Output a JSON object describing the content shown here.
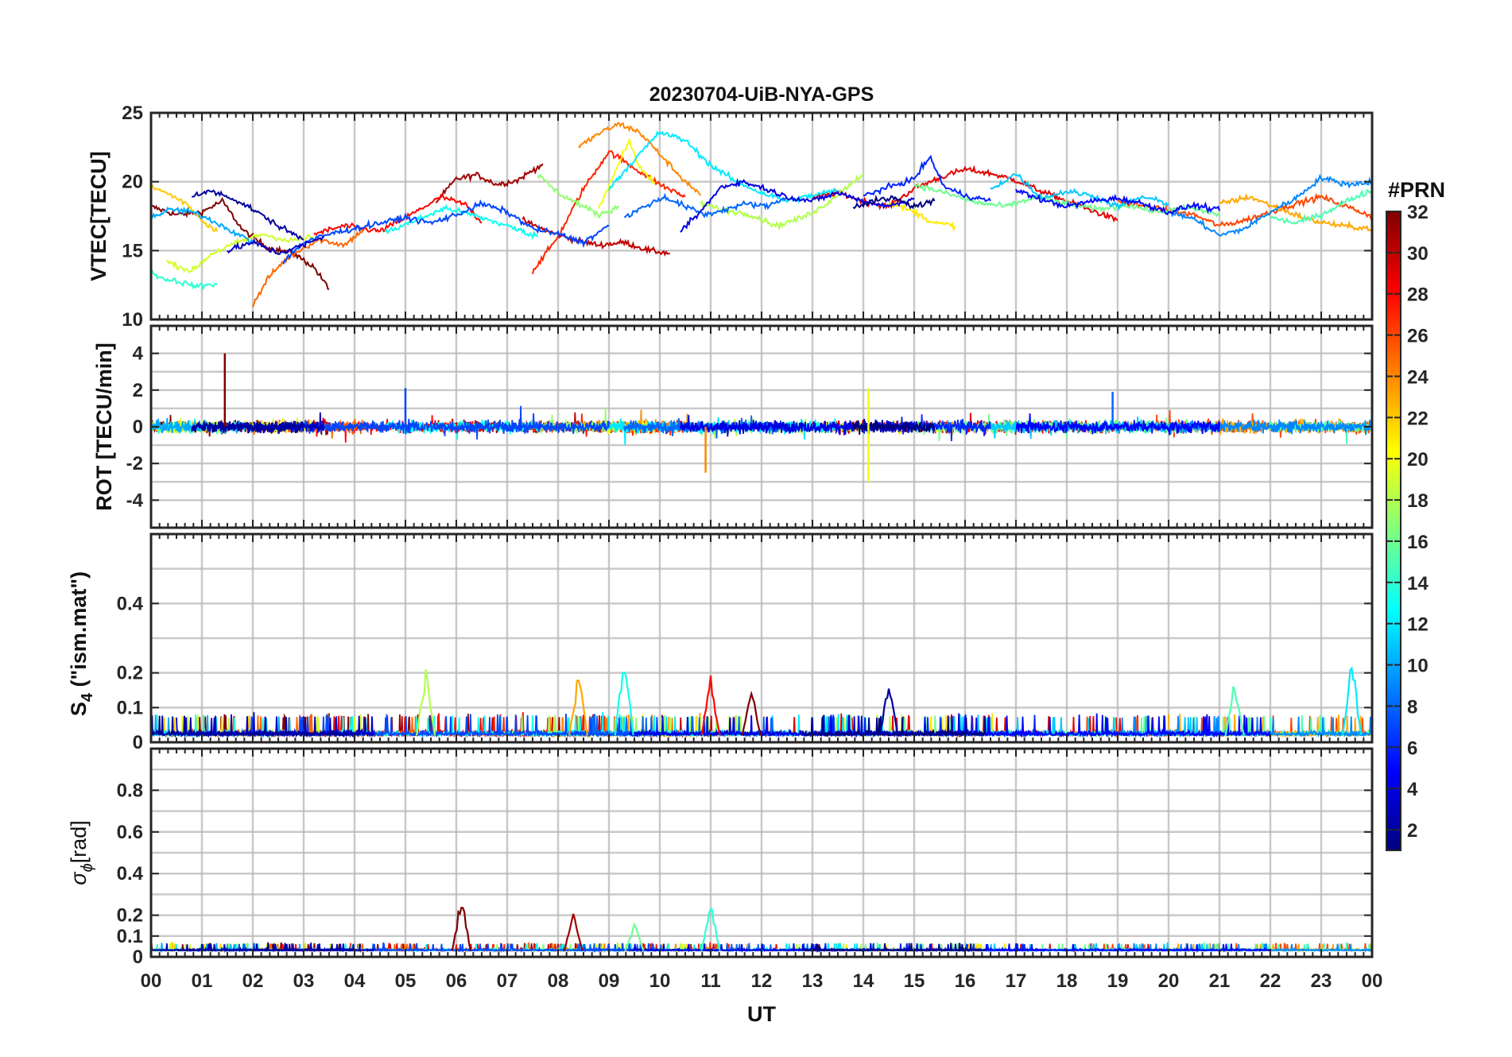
{
  "figure": {
    "title": "20230704-UiB-NYA-GPS",
    "xlabel": "UT",
    "x_ticks": [
      "00",
      "01",
      "02",
      "03",
      "04",
      "05",
      "06",
      "07",
      "08",
      "09",
      "10",
      "11",
      "12",
      "13",
      "14",
      "15",
      "16",
      "17",
      "18",
      "19",
      "20",
      "21",
      "22",
      "23",
      "00"
    ],
    "colorbar": {
      "label": "#PRN",
      "ticks": [
        "2",
        "4",
        "6",
        "8",
        "10",
        "12",
        "14",
        "16",
        "18",
        "20",
        "22",
        "24",
        "26",
        "28",
        "30",
        "32"
      ],
      "range": [
        1,
        32
      ],
      "colormap": "jet",
      "colormap_stops": [
        "#00007f",
        "#0000ff",
        "#007fff",
        "#00ffff",
        "#7fff7f",
        "#ffff00",
        "#ff7f00",
        "#ff0000",
        "#7f0000"
      ]
    },
    "panels": {
      "vtec": {
        "ylabel": "VTEC[TECU]",
        "y_ticks": [
          "10",
          "15",
          "20",
          "25"
        ]
      },
      "rot": {
        "ylabel": "ROT [TECU/min]",
        "y_ticks": [
          "-4",
          "-2",
          "0",
          "2",
          "4"
        ]
      },
      "s4": {
        "ylabel_main": "S",
        "ylabel_sub": "4",
        "ylabel_rest": " (\"ism.mat\")",
        "y_ticks": [
          "0",
          "0.1",
          "0.2",
          "0.4"
        ]
      },
      "sigma": {
        "ylabel_main": "σ",
        "ylabel_sub": "ϕ",
        "ylabel_rest": "[rad]",
        "y_ticks": [
          "0",
          "0.1",
          "0.2",
          "0.4",
          "0.6",
          "0.8"
        ]
      }
    }
  },
  "chart_data": [
    {
      "type": "line",
      "title": "20230704-UiB-NYA-GPS",
      "xlabel": "UT",
      "ylabel": "VTEC[TECU]",
      "xlim": [
        0,
        24
      ],
      "ylim": [
        10,
        25
      ],
      "grid": true,
      "color_by": "#PRN",
      "series": [
        {
          "prn": 32,
          "x": [
            0.0,
            0.5,
            1.0,
            1.4,
            1.8,
            2.3,
            2.8,
            3.2,
            3.5
          ],
          "y": [
            18.2,
            17.6,
            17.8,
            18.6,
            16.5,
            15.2,
            14.8,
            13.8,
            12.2
          ]
        },
        {
          "prn": 31,
          "x": [
            5.6,
            6.0,
            6.4,
            6.8,
            7.2,
            7.7
          ],
          "y": [
            18.5,
            20.2,
            20.5,
            19.8,
            20.1,
            21.3
          ]
        },
        {
          "prn": 30,
          "x": [
            7.3,
            7.8,
            8.3,
            8.8,
            9.3,
            9.8,
            10.2
          ],
          "y": [
            17.2,
            16.4,
            15.8,
            15.4,
            15.6,
            15.0,
            14.8
          ]
        },
        {
          "prn": 29,
          "x": [
            13.0,
            13.5,
            14.0,
            14.5,
            15.0,
            15.5,
            16.0,
            16.5,
            17.0,
            17.5,
            18.0,
            18.5,
            19.0
          ],
          "y": [
            18.8,
            19.2,
            18.6,
            18.2,
            19.5,
            20.3,
            20.9,
            20.6,
            20.1,
            19.3,
            18.6,
            17.9,
            17.2
          ]
        },
        {
          "prn": 28,
          "x": [
            3.2,
            3.8,
            4.5,
            5.2,
            5.7,
            6.2,
            6.5
          ],
          "y": [
            16.2,
            16.8,
            16.4,
            17.8,
            18.9,
            18.3,
            17.0
          ]
        },
        {
          "prn": 27,
          "x": [
            7.5,
            8.0,
            8.5,
            9.0,
            9.5,
            10.0,
            10.5
          ],
          "y": [
            13.5,
            16.0,
            19.5,
            22.2,
            21.0,
            19.8,
            18.9
          ]
        },
        {
          "prn": 26,
          "x": [
            19.0,
            19.5,
            20.0,
            20.5,
            21.0,
            21.5,
            22.0,
            22.5,
            23.0,
            23.5,
            24.0
          ],
          "y": [
            18.6,
            18.2,
            17.9,
            17.6,
            16.8,
            17.2,
            17.8,
            18.4,
            18.9,
            18.2,
            17.5
          ]
        },
        {
          "prn": 25,
          "x": [
            2.0,
            2.3,
            2.6,
            2.9,
            3.3,
            3.8,
            4.2
          ],
          "y": [
            11.0,
            13.0,
            14.2,
            15.0,
            15.8,
            15.4,
            16.6
          ]
        },
        {
          "prn": 24,
          "x": [
            8.4,
            8.8,
            9.2,
            9.6,
            10.0,
            10.4,
            10.8
          ],
          "y": [
            22.5,
            23.5,
            24.2,
            23.6,
            22.0,
            20.4,
            19.0
          ]
        },
        {
          "prn": 23,
          "x": [
            21.0,
            21.6,
            22.2,
            22.8,
            23.4,
            24.0
          ],
          "y": [
            18.4,
            18.9,
            18.0,
            17.2,
            16.8,
            16.6
          ]
        },
        {
          "prn": 22,
          "x": [
            0.0,
            0.3,
            0.7,
            1.0,
            1.3
          ],
          "y": [
            19.6,
            19.2,
            18.4,
            17.2,
            16.4
          ]
        },
        {
          "prn": 21,
          "x": [
            14.5,
            15.0,
            15.4,
            15.8
          ],
          "y": [
            18.5,
            17.8,
            17.0,
            16.8
          ]
        },
        {
          "prn": 20,
          "x": [
            8.8,
            9.1,
            9.4,
            9.6,
            9.9
          ],
          "y": [
            18.0,
            20.5,
            23.0,
            21.0,
            20.0
          ]
        },
        {
          "prn": 19,
          "x": [
            0.3,
            0.8,
            1.2,
            1.7,
            2.2,
            2.7,
            3.2
          ],
          "y": [
            14.2,
            13.5,
            14.8,
            15.6,
            16.2,
            15.7,
            16.0
          ]
        },
        {
          "prn": 18,
          "x": [
            10.8,
            11.2,
            11.8,
            12.3,
            12.8,
            13.2,
            13.6,
            14.0
          ],
          "y": [
            18.4,
            18.0,
            17.6,
            16.8,
            17.4,
            18.2,
            19.4,
            20.6
          ]
        },
        {
          "prn": 17,
          "x": [
            7.6,
            8.0,
            8.4,
            8.8,
            9.2
          ],
          "y": [
            20.5,
            19.2,
            18.4,
            17.6,
            18.2
          ]
        },
        {
          "prn": 16,
          "x": [
            15.0,
            15.6,
            16.2,
            16.8,
            17.4,
            18.0,
            18.6,
            19.2,
            19.8,
            20.4,
            21.0
          ],
          "y": [
            19.8,
            19.2,
            18.5,
            18.2,
            18.9,
            18.4,
            18.0,
            18.3,
            17.8,
            18.1,
            17.6
          ]
        },
        {
          "prn": 15,
          "x": [
            22.0,
            22.5,
            23.0,
            23.5,
            24.0
          ],
          "y": [
            17.4,
            17.0,
            17.6,
            18.6,
            19.4
          ]
        },
        {
          "prn": 14,
          "x": [
            0.0,
            0.2,
            0.5,
            0.9,
            1.3
          ],
          "y": [
            13.5,
            13.0,
            12.8,
            12.4,
            12.6
          ]
        },
        {
          "prn": 13,
          "x": [
            4.6,
            5.2,
            5.8,
            6.4,
            7.0,
            7.6
          ],
          "y": [
            16.3,
            17.2,
            18.1,
            17.5,
            16.8,
            16.0
          ]
        },
        {
          "prn": 12,
          "x": [
            9.0,
            9.5,
            10.0,
            10.5,
            11.0,
            11.5,
            12.0,
            12.5,
            13.0,
            13.5
          ],
          "y": [
            19.5,
            21.6,
            23.6,
            23.0,
            21.2,
            20.0,
            19.2,
            18.6,
            19.0,
            19.4
          ]
        },
        {
          "prn": 11,
          "x": [
            16.5,
            17.0,
            17.5,
            18.0,
            18.5,
            19.0,
            19.5,
            20.0
          ],
          "y": [
            19.4,
            20.6,
            18.8,
            19.3,
            19.0,
            18.2,
            18.9,
            18.4
          ]
        },
        {
          "prn": 10,
          "x": [
            0.0,
            0.4,
            0.8,
            1.2,
            1.6,
            2.0
          ],
          "y": [
            17.4,
            18.0,
            17.8,
            17.2,
            16.4,
            15.6
          ]
        },
        {
          "prn": 9,
          "x": [
            20.0,
            20.5,
            21.0,
            21.5,
            22.0,
            22.5,
            23.0,
            23.5,
            24.0
          ],
          "y": [
            17.8,
            17.3,
            16.1,
            16.6,
            17.8,
            18.8,
            20.3,
            19.8,
            20.0
          ]
        },
        {
          "prn": 8,
          "x": [
            9.3,
            9.7,
            10.1,
            10.5,
            10.9,
            11.3,
            11.7,
            12.1,
            12.5
          ],
          "y": [
            17.4,
            18.2,
            18.9,
            18.2,
            17.6,
            18.0,
            18.4,
            18.2,
            18.9
          ]
        },
        {
          "prn": 7,
          "x": [
            2.6,
            3.0,
            3.5,
            4.0,
            4.5,
            5.0,
            5.5,
            6.0,
            6.5,
            7.0,
            7.5,
            8.0,
            8.5,
            9.0
          ],
          "y": [
            14.2,
            15.6,
            16.2,
            16.6,
            17.0,
            17.4,
            17.0,
            17.6,
            18.4,
            17.8,
            16.6,
            16.2,
            15.6,
            16.8
          ]
        },
        {
          "prn": 6,
          "x": [
            14.0,
            14.5,
            15.0,
            15.3,
            15.6,
            16.0,
            16.5
          ],
          "y": [
            19.0,
            19.6,
            20.2,
            21.8,
            19.6,
            19.0,
            18.6
          ]
        },
        {
          "prn": 5,
          "x": [
            17.0,
            17.5,
            18.0,
            18.5,
            19.0,
            19.5,
            20.0,
            20.5,
            21.0
          ],
          "y": [
            19.4,
            18.7,
            18.2,
            18.6,
            18.8,
            18.4,
            17.8,
            18.3,
            17.9
          ]
        },
        {
          "prn": 4,
          "x": [
            10.4,
            10.8,
            11.2,
            11.6,
            12.0,
            12.5,
            13.0,
            13.5,
            14.0,
            14.5,
            15.0
          ],
          "y": [
            16.4,
            17.8,
            19.6,
            20.0,
            19.6,
            18.9,
            18.6,
            19.2,
            18.6,
            18.2,
            18.8
          ]
        },
        {
          "prn": 3,
          "x": [
            1.5,
            2.0,
            2.5,
            3.0,
            3.4
          ],
          "y": [
            15.0,
            15.6,
            14.8,
            15.4,
            16.0
          ]
        },
        {
          "prn": 2,
          "x": [
            0.8,
            1.2,
            1.6,
            2.0,
            2.5,
            3.0
          ],
          "y": [
            19.0,
            19.3,
            18.8,
            18.0,
            16.8,
            15.8
          ]
        },
        {
          "prn": 1,
          "x": [
            13.8,
            14.2,
            14.6,
            15.0,
            15.4
          ],
          "y": [
            18.2,
            18.6,
            18.8,
            18.2,
            18.6
          ]
        }
      ]
    },
    {
      "type": "line",
      "xlabel": "UT",
      "ylabel": "ROT [TECU/min]",
      "xlim": [
        0,
        24
      ],
      "ylim": [
        -5.5,
        5.5
      ],
      "grid": true,
      "description": "dense noisy band centred near 0 for all PRNs",
      "series": [
        {
          "prn": 32,
          "x": [
            1.45
          ],
          "y": [
            4.0
          ]
        },
        {
          "prn": 24,
          "x": [
            10.9
          ],
          "y": [
            -2.5
          ]
        },
        {
          "prn": 20,
          "x": [
            14.1
          ],
          "y": [
            -3.0
          ]
        },
        {
          "prn": 20,
          "x": [
            14.1
          ],
          "y": [
            2.1
          ]
        },
        {
          "prn": 7,
          "x": [
            5.0
          ],
          "y": [
            2.1
          ]
        },
        {
          "prn": 8,
          "x": [
            18.9
          ],
          "y": [
            1.9
          ]
        }
      ],
      "band": {
        "x": [
          0,
          24
        ],
        "y_typical": [
          -1.0,
          1.0
        ]
      }
    },
    {
      "type": "line",
      "xlabel": "UT",
      "ylabel": "S4 (\"ism.mat\")",
      "xlim": [
        0,
        24
      ],
      "ylim": [
        0,
        0.6
      ],
      "grid": true,
      "peaks": [
        {
          "prn": 13,
          "x": 9.3,
          "y": 0.27
        },
        {
          "prn": 12,
          "x": 23.6,
          "y": 0.26
        },
        {
          "prn": 18,
          "x": 5.4,
          "y": 0.22
        },
        {
          "prn": 23,
          "x": 8.4,
          "y": 0.21
        },
        {
          "prn": 28,
          "x": 11.0,
          "y": 0.2
        },
        {
          "prn": 15,
          "x": 21.3,
          "y": 0.19
        },
        {
          "prn": 2,
          "x": 14.5,
          "y": 0.18
        },
        {
          "prn": 32,
          "x": 11.8,
          "y": 0.17
        }
      ]
    },
    {
      "type": "line",
      "xlabel": "UT",
      "ylabel": "σϕ[rad]",
      "xlim": [
        0,
        24
      ],
      "ylim": [
        0,
        1.0
      ],
      "grid": true,
      "peaks": [
        {
          "prn": 32,
          "x": 6.1,
          "y": 0.31
        },
        {
          "prn": 14,
          "x": 11.0,
          "y": 0.27
        },
        {
          "prn": 31,
          "x": 8.3,
          "y": 0.22
        },
        {
          "prn": 16,
          "x": 9.5,
          "y": 0.17
        }
      ]
    }
  ]
}
